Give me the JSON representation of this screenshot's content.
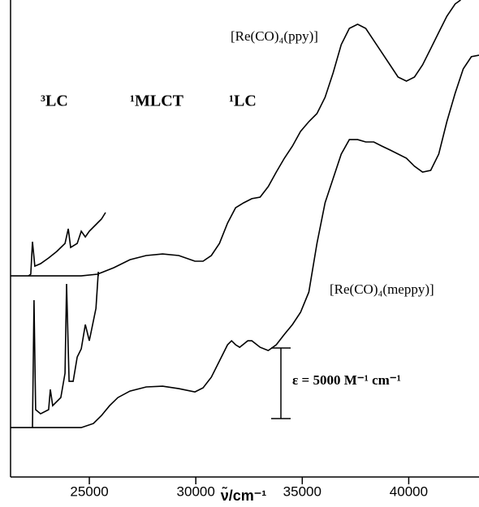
{
  "chart_data": {
    "type": "line",
    "xlabel": "ν̃/cm⁻¹",
    "annotations": [
      "³LC",
      "¹MLCT",
      "¹LC"
    ],
    "scale_bar": {
      "value": 5000,
      "label": "ε = 5000 M⁻¹ cm⁻¹"
    },
    "xlim": [
      21300,
      43300
    ],
    "xticks": [
      25000,
      30000,
      35000,
      40000
    ],
    "ylim": [
      -3500,
      30300
    ],
    "series": [
      {
        "name": "[Re(CO)₄(ppy)]",
        "color": "#000000",
        "x": [
          21300,
          24620,
          25380,
          26150,
          26910,
          27670,
          28440,
          29200,
          29960,
          30340,
          30730,
          31110,
          31490,
          31870,
          32250,
          32630,
          33020,
          33400,
          33780,
          34160,
          34540,
          34920,
          35310,
          35690,
          36070,
          36450,
          36830,
          37210,
          37600,
          37980,
          38360,
          38740,
          39120,
          39500,
          39890,
          40270,
          40650,
          41030,
          41410,
          41790,
          42180,
          42440
        ],
        "values": [
          10750,
          10750,
          10870,
          11330,
          11900,
          12190,
          12300,
          12190,
          11790,
          11790,
          12190,
          13050,
          14490,
          15580,
          15930,
          16220,
          16330,
          17080,
          18110,
          19090,
          19950,
          20990,
          21680,
          22250,
          23400,
          25130,
          27140,
          28290,
          28580,
          28290,
          27430,
          26570,
          25700,
          24840,
          24550,
          24840,
          25700,
          26850,
          28000,
          29150,
          30020,
          30300
        ]
      },
      {
        "name": "[Re(CO)₄(meppy)]",
        "color": "#000000",
        "x": [
          21300,
          24620,
          25190,
          25570,
          25950,
          26340,
          26910,
          27670,
          28440,
          29200,
          29960,
          30340,
          30730,
          31110,
          31490,
          31680,
          31870,
          32060,
          32440,
          32630,
          33020,
          33400,
          33780,
          34160,
          34540,
          34920,
          35310,
          35690,
          36070,
          36450,
          36830,
          37210,
          37600,
          37980,
          38360,
          38740,
          39120,
          39890,
          40270,
          40650,
          41030,
          41410,
          41790,
          42180,
          42560,
          42940,
          43300
        ],
        "values": [
          0,
          0,
          290,
          860,
          1550,
          2130,
          2590,
          2880,
          2930,
          2760,
          2530,
          2820,
          3570,
          4720,
          5870,
          6150,
          5870,
          5690,
          6150,
          6150,
          5690,
          5460,
          5870,
          6610,
          7300,
          8170,
          9600,
          13050,
          15930,
          17650,
          19380,
          20410,
          20410,
          20240,
          20240,
          19950,
          19670,
          19090,
          18520,
          18110,
          18230,
          19380,
          21680,
          23690,
          25420,
          26280,
          26390
        ]
      },
      {
        "color": "#000000",
        "x": [
          22140,
          22250,
          22330,
          22440,
          22710,
          23090,
          23470,
          23860,
          24010,
          24120,
          24430,
          24620,
          24810,
          25000,
          25380,
          25570,
          25760
        ],
        "values": [
          10750,
          10870,
          13170,
          11440,
          11620,
          12020,
          12480,
          13050,
          14090,
          12770,
          13050,
          13920,
          13510,
          13920,
          14490,
          14780,
          15240
        ]
      },
      {
        "color": "#000000",
        "x": [
          22330,
          22400,
          22480,
          22710,
          23090,
          23170,
          23280,
          23660,
          23860,
          23930,
          24050,
          24240,
          24430,
          24620,
          24810,
          25000,
          25310,
          25420,
          25420
        ],
        "values": [
          0,
          9030,
          1270,
          980,
          1270,
          2700,
          1550,
          2130,
          3850,
          10180,
          3280,
          3280,
          5000,
          5580,
          7300,
          6150,
          8450,
          11040,
          10750
        ]
      }
    ]
  }
}
